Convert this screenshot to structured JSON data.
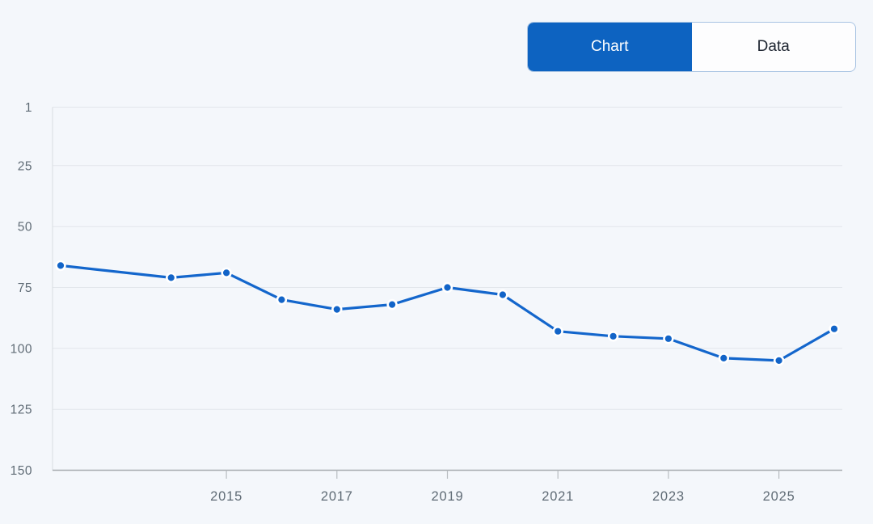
{
  "toggle": {
    "chart_label": "Chart",
    "data_label": "Data",
    "selected": "Chart"
  },
  "colors": {
    "accent": "#0d63c1",
    "series_line": "#1366cc",
    "point_fill": "#1264c8",
    "point_halo": "#ffffff",
    "background": "#f4f7fb",
    "gridline": "#e2e6eb",
    "x_axis_line": "#a6aaae",
    "y_axis_line": "#d9dde1",
    "tick_mark": "#b8bcc0",
    "tick_label": "#5f6b75",
    "toggle_border": "#a9c4e3",
    "toggle_unselected_text": "#1d2430",
    "toggle_selected_text": "#ffffff"
  },
  "chart_data": {
    "type": "line",
    "x": [
      2012,
      2014,
      2015,
      2016,
      2017,
      2018,
      2019,
      2020,
      2021,
      2022,
      2023,
      2024,
      2025,
      2026
    ],
    "values": [
      66,
      71,
      69,
      80,
      84,
      82,
      75,
      78,
      93,
      95,
      96,
      104,
      105,
      92
    ],
    "x_ticks": [
      2015,
      2017,
      2019,
      2021,
      2023,
      2025
    ],
    "x_tick_labels": [
      "2015",
      "2017",
      "2019",
      "2021",
      "2023",
      "2025"
    ],
    "y_ticks": [
      1,
      25,
      50,
      75,
      100,
      125,
      150
    ],
    "y_tick_labels": [
      "1",
      "25",
      "50",
      "75",
      "100",
      "125",
      "150"
    ],
    "xlim": [
      2012,
      2026
    ],
    "ylim": [
      1,
      150
    ],
    "y_inverted": true,
    "grid": "horizontal",
    "legend": "none",
    "marker": "circle"
  }
}
